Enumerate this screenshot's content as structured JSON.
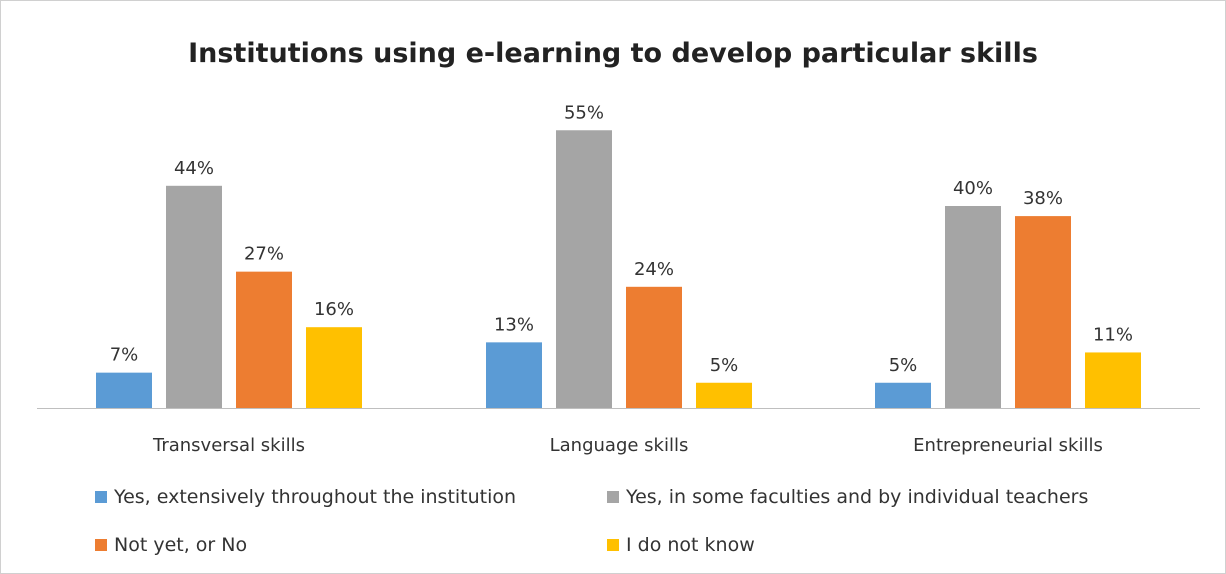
{
  "chart_data": {
    "type": "bar",
    "title": "Institutions using e-learning to develop particular skills",
    "categories": [
      "Transversal skills",
      "Language skills",
      "Entrepreneurial skills"
    ],
    "series": [
      {
        "name": "Yes, extensively throughout the institution",
        "values": [
          7,
          13,
          5
        ],
        "color": "#5B9BD5"
      },
      {
        "name": "Yes, in some faculties and by individual teachers",
        "values": [
          44,
          55,
          40
        ],
        "color": "#A5A5A5"
      },
      {
        "name": "Not yet, or No",
        "values": [
          27,
          24,
          38
        ],
        "color": "#ED7D31"
      },
      {
        "name": "I do not know",
        "values": [
          16,
          5,
          11
        ],
        "color": "#FFC000"
      }
    ],
    "value_suffix": "%",
    "xlabel": "",
    "ylabel": "",
    "ylim": [
      0,
      60
    ],
    "grid": false,
    "legend_position": "bottom"
  }
}
